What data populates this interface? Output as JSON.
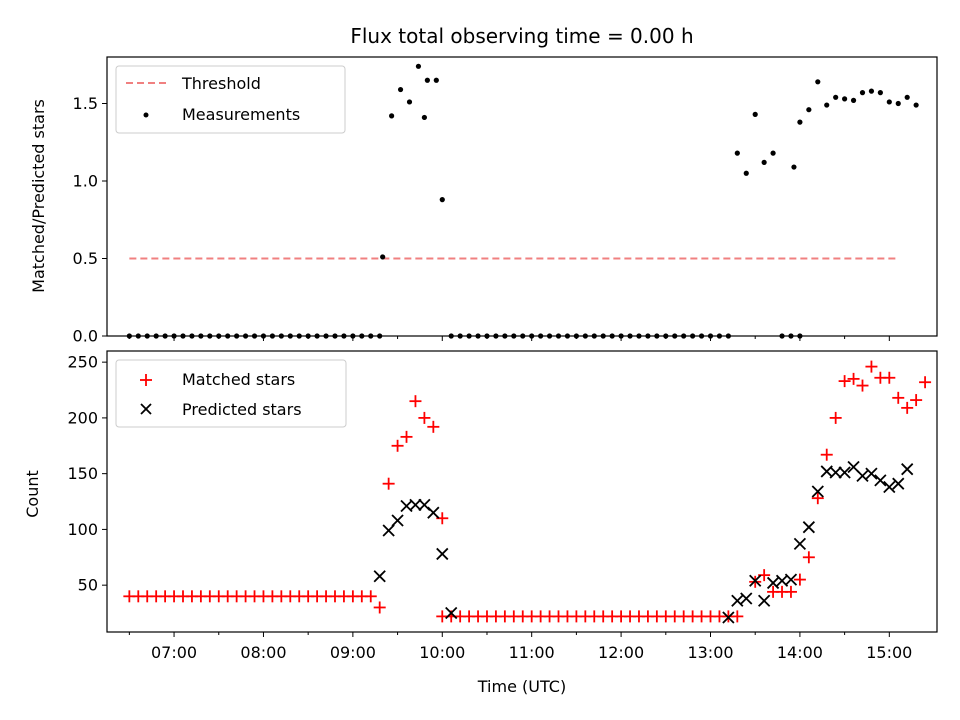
{
  "chart_data": [
    {
      "type": "scatter",
      "title": "Flux total observing time = 0.00 h",
      "ylabel": "Matched/Predicted stars",
      "xlabel": "",
      "ylim": [
        0,
        1.8
      ],
      "xlim": [
        "06:15",
        "15:32"
      ],
      "y_ticks": [
        0.0,
        0.5,
        1.0,
        1.5
      ],
      "y_tick_labels": [
        "0.0",
        "0.5",
        "1.0",
        "1.5"
      ],
      "legend_position": "top-left",
      "threshold": {
        "name": "Threshold",
        "y": 0.5,
        "x_start": "06:30",
        "x_end": "15:05",
        "color": "#f08080"
      },
      "measurements": {
        "name": "Measurements",
        "color": "#000000",
        "points": [
          [
            "06:30",
            0
          ],
          [
            "06:36",
            0
          ],
          [
            "06:42",
            0
          ],
          [
            "06:48",
            0
          ],
          [
            "06:54",
            0
          ],
          [
            "07:00",
            0
          ],
          [
            "07:06",
            0
          ],
          [
            "07:12",
            0
          ],
          [
            "07:18",
            0
          ],
          [
            "07:24",
            0
          ],
          [
            "07:30",
            0
          ],
          [
            "07:36",
            0
          ],
          [
            "07:42",
            0
          ],
          [
            "07:48",
            0
          ],
          [
            "07:54",
            0
          ],
          [
            "08:00",
            0
          ],
          [
            "08:06",
            0
          ],
          [
            "08:12",
            0
          ],
          [
            "08:18",
            0
          ],
          [
            "08:24",
            0
          ],
          [
            "08:30",
            0
          ],
          [
            "08:36",
            0
          ],
          [
            "08:42",
            0
          ],
          [
            "08:48",
            0
          ],
          [
            "08:54",
            0
          ],
          [
            "09:00",
            0
          ],
          [
            "09:06",
            0
          ],
          [
            "09:12",
            0
          ],
          [
            "09:18",
            0
          ],
          [
            "09:20",
            0.51
          ],
          [
            "09:26",
            1.42
          ],
          [
            "09:32",
            1.59
          ],
          [
            "09:38",
            1.51
          ],
          [
            "09:44",
            1.74
          ],
          [
            "09:50",
            1.65
          ],
          [
            "09:56",
            1.65
          ],
          [
            "09:48",
            1.41
          ],
          [
            "10:00",
            0.88
          ],
          [
            "10:06",
            0
          ],
          [
            "10:12",
            0
          ],
          [
            "10:18",
            0
          ],
          [
            "10:24",
            0
          ],
          [
            "10:30",
            0
          ],
          [
            "10:36",
            0
          ],
          [
            "10:42",
            0
          ],
          [
            "10:48",
            0
          ],
          [
            "10:54",
            0
          ],
          [
            "11:00",
            0
          ],
          [
            "11:06",
            0
          ],
          [
            "11:12",
            0
          ],
          [
            "11:18",
            0
          ],
          [
            "11:24",
            0
          ],
          [
            "11:30",
            0
          ],
          [
            "11:36",
            0
          ],
          [
            "11:42",
            0
          ],
          [
            "11:48",
            0
          ],
          [
            "11:54",
            0
          ],
          [
            "12:00",
            0
          ],
          [
            "12:06",
            0
          ],
          [
            "12:12",
            0
          ],
          [
            "12:18",
            0
          ],
          [
            "12:24",
            0
          ],
          [
            "12:30",
            0
          ],
          [
            "12:36",
            0
          ],
          [
            "12:42",
            0
          ],
          [
            "12:48",
            0
          ],
          [
            "12:54",
            0
          ],
          [
            "13:00",
            0
          ],
          [
            "13:06",
            0
          ],
          [
            "13:12",
            0
          ],
          [
            "13:18",
            1.18
          ],
          [
            "13:24",
            1.05
          ],
          [
            "13:30",
            1.43
          ],
          [
            "13:36",
            1.12
          ],
          [
            "13:42",
            1.18
          ],
          [
            "13:48",
            0
          ],
          [
            "13:54",
            0
          ],
          [
            "14:00",
            0
          ],
          [
            "13:56",
            1.09
          ],
          [
            "14:00",
            1.38
          ],
          [
            "14:06",
            1.46
          ],
          [
            "14:12",
            1.64
          ],
          [
            "14:18",
            1.49
          ],
          [
            "14:24",
            1.54
          ],
          [
            "14:30",
            1.53
          ],
          [
            "14:36",
            1.52
          ],
          [
            "14:42",
            1.57
          ],
          [
            "14:48",
            1.58
          ],
          [
            "14:54",
            1.57
          ],
          [
            "15:00",
            1.51
          ],
          [
            "15:06",
            1.5
          ],
          [
            "15:12",
            1.54
          ],
          [
            "15:18",
            1.49
          ]
        ]
      }
    },
    {
      "type": "scatter",
      "title": "",
      "ylabel": "Count",
      "xlabel": "Time (UTC)",
      "ylim": [
        8,
        260
      ],
      "xlim": [
        "06:15",
        "15:32"
      ],
      "y_ticks": [
        50,
        100,
        150,
        200,
        250
      ],
      "y_tick_labels": [
        "50",
        "100",
        "150",
        "200",
        "250"
      ],
      "x_ticks": [
        "07:00",
        "08:00",
        "09:00",
        "10:00",
        "11:00",
        "12:00",
        "13:00",
        "14:00",
        "15:00"
      ],
      "x_tick_labels": [
        "07:00",
        "08:00",
        "09:00",
        "10:00",
        "11:00",
        "12:00",
        "13:00",
        "14:00",
        "15:00"
      ],
      "x_minor_ticks": [
        "06:30",
        "07:30",
        "08:30",
        "09:30",
        "10:30",
        "11:30",
        "12:30",
        "13:30",
        "14:30"
      ],
      "legend_position": "top-left",
      "series": [
        {
          "name": "Matched stars",
          "marker": "+",
          "color": "#ff0000",
          "points": [
            [
              "09:18",
              30
            ],
            [
              "09:24",
              141
            ],
            [
              "09:30",
              175
            ],
            [
              "09:36",
              183
            ],
            [
              "09:42",
              215
            ],
            [
              "09:48",
              200
            ],
            [
              "09:54",
              192
            ],
            [
              "10:00",
              110
            ],
            [
              "13:30",
              53
            ],
            [
              "13:36",
              59
            ],
            [
              "13:42",
              44
            ],
            [
              "13:48",
              44
            ],
            [
              "13:54",
              44
            ],
            [
              "14:00",
              55
            ],
            [
              "14:06",
              75
            ],
            [
              "14:12",
              128
            ],
            [
              "14:18",
              167
            ],
            [
              "14:24",
              200
            ],
            [
              "14:30",
              233
            ],
            [
              "14:36",
              235
            ],
            [
              "14:42",
              229
            ],
            [
              "14:48",
              246
            ],
            [
              "14:54",
              236
            ],
            [
              "15:00",
              236
            ],
            [
              "15:06",
              218
            ],
            [
              "15:12",
              209
            ],
            [
              "15:18",
              216
            ],
            [
              "15:24",
              232
            ]
          ],
          "flat_runs": [
            {
              "x_start": "06:30",
              "x_end": "09:12",
              "step_min": 6,
              "y": 40
            },
            {
              "x_start": "10:00",
              "x_end": "13:18",
              "step_min": 6,
              "y": 22
            }
          ]
        },
        {
          "name": "Predicted stars",
          "marker": "x",
          "color": "#000000",
          "points": [
            [
              "09:18",
              58
            ],
            [
              "09:24",
              99
            ],
            [
              "09:30",
              108
            ],
            [
              "09:36",
              121
            ],
            [
              "09:42",
              122
            ],
            [
              "09:48",
              122
            ],
            [
              "09:54",
              115
            ],
            [
              "10:00",
              78
            ],
            [
              "10:06",
              25
            ],
            [
              "13:12",
              21
            ],
            [
              "13:18",
              36
            ],
            [
              "13:24",
              38
            ],
            [
              "13:30",
              54
            ],
            [
              "13:36",
              36
            ],
            [
              "13:42",
              52
            ],
            [
              "13:48",
              54
            ],
            [
              "13:54",
              55
            ],
            [
              "14:00",
              87
            ],
            [
              "14:06",
              102
            ],
            [
              "14:12",
              134
            ],
            [
              "14:18",
              152
            ],
            [
              "14:24",
              151
            ],
            [
              "14:30",
              151
            ],
            [
              "14:36",
              156
            ],
            [
              "14:42",
              148
            ],
            [
              "14:48",
              150
            ],
            [
              "14:54",
              144
            ],
            [
              "15:00",
              138
            ],
            [
              "15:06",
              141
            ],
            [
              "15:12",
              154
            ]
          ]
        }
      ]
    }
  ]
}
